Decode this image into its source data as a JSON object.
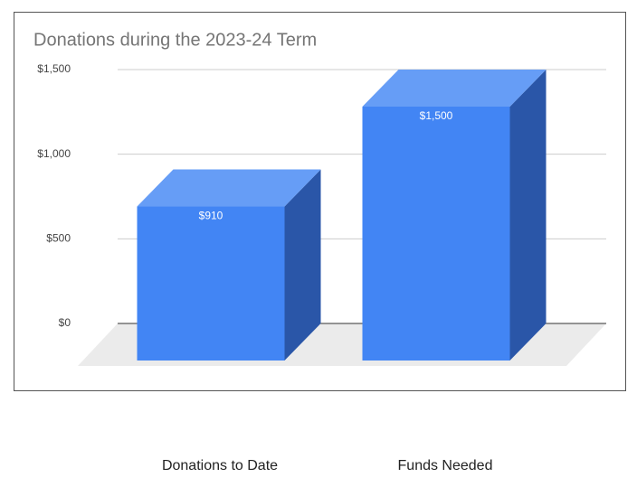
{
  "chart_data": {
    "type": "bar3d",
    "title": "Donations during the 2023-24 Term",
    "categories": [
      "Donations to Date",
      "Funds Needed"
    ],
    "values": [
      910,
      1500
    ],
    "value_labels": [
      "$910",
      "$1,500"
    ],
    "color": "#4285f4",
    "ylim": [
      0,
      1500
    ],
    "yticks": [
      {
        "value": 0,
        "label": "$0"
      },
      {
        "value": 500,
        "label": "$500"
      },
      {
        "value": 1000,
        "label": "$1,000"
      },
      {
        "value": 1500,
        "label": "$1,500"
      }
    ],
    "grid": true
  }
}
